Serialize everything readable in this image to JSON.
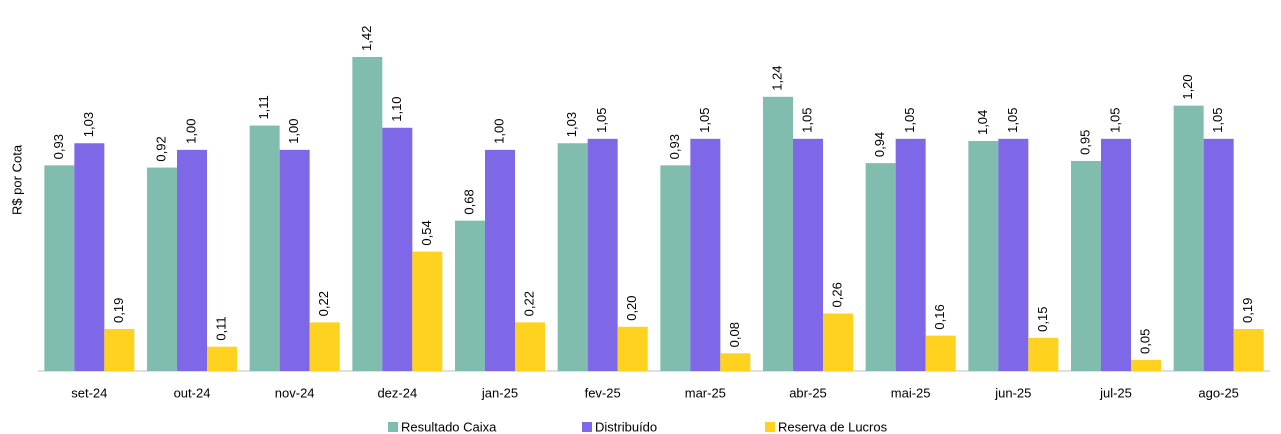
{
  "chart_data": {
    "type": "bar",
    "y_label": "R$ por Cota",
    "categories": [
      "set-24",
      "out-24",
      "nov-24",
      "dez-24",
      "jan-25",
      "fev-25",
      "mar-25",
      "abr-25",
      "mai-25",
      "jun-25",
      "jul-25",
      "ago-25"
    ],
    "series": [
      {
        "name": "Resultado Caixa",
        "color": "#80bdae",
        "values": [
          0.93,
          0.92,
          1.11,
          1.42,
          0.68,
          1.03,
          0.93,
          1.24,
          0.94,
          1.04,
          0.95,
          1.2
        ],
        "value_labels": [
          "0,93",
          "0,92",
          "1,11",
          "1,42",
          "0,68",
          "1,03",
          "0,93",
          "1,24",
          "0,94",
          "1,04",
          "0,95",
          "1,20"
        ]
      },
      {
        "name": "Distribuído",
        "color": "#7f68e8",
        "values": [
          1.03,
          1.0,
          1.0,
          1.1,
          1.0,
          1.05,
          1.05,
          1.05,
          1.05,
          1.05,
          1.05,
          1.05
        ],
        "value_labels": [
          "1,03",
          "1,00",
          "1,00",
          "1,10",
          "1,00",
          "1,05",
          "1,05",
          "1,05",
          "1,05",
          "1,05",
          "1,05",
          "1,05"
        ]
      },
      {
        "name": "Reserva de Lucros",
        "color": "#ffd21f",
        "values": [
          0.19,
          0.11,
          0.22,
          0.54,
          0.22,
          0.2,
          0.08,
          0.26,
          0.16,
          0.15,
          0.05,
          0.19
        ],
        "value_labels": [
          "0,19",
          "0,11",
          "0,22",
          "0,54",
          "0,22",
          "0,20",
          "0,08",
          "0,26",
          "0,16",
          "0,15",
          "0,05",
          "0,19"
        ]
      }
    ],
    "legend": "bottom"
  }
}
